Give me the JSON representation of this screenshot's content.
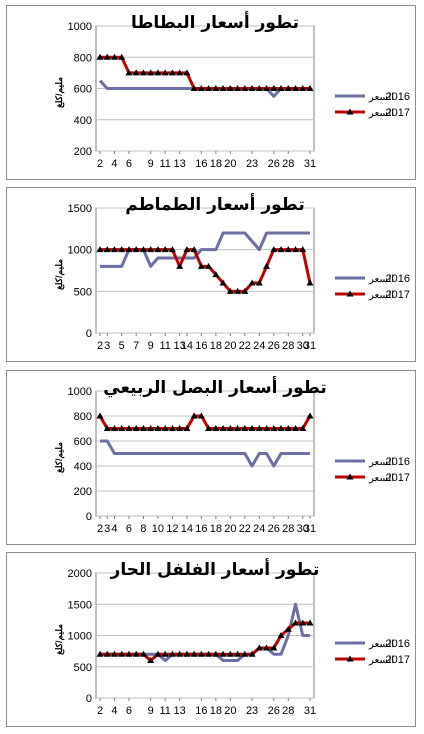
{
  "colors": {
    "series_2016": "#6b6fa3",
    "series_2017": "#c00000",
    "grid": "#bfbfbf",
    "axis": "#808080"
  },
  "chart_data": [
    {
      "type": "line",
      "title": "تطور أسعار البطاطا",
      "ylabel": "مليم/كلغ",
      "x": [
        2,
        3,
        4,
        5,
        6,
        7,
        8,
        9,
        10,
        11,
        12,
        13,
        14,
        15,
        16,
        17,
        18,
        19,
        20,
        21,
        22,
        23,
        24,
        25,
        26,
        27,
        28,
        29,
        30,
        31
      ],
      "xticks": [
        "2",
        "4",
        "6",
        "9",
        "11",
        "13",
        "16",
        "18",
        "20",
        "23",
        "26",
        "28",
        "31"
      ],
      "yticks": [
        "1000",
        "800",
        "600",
        "400",
        "200"
      ],
      "ylim": [
        200,
        1000
      ],
      "grid": true,
      "legend_position": "right",
      "series": [
        {
          "name": "2016",
          "label": "السعر",
          "values": [
            650,
            600,
            600,
            600,
            600,
            600,
            600,
            600,
            600,
            600,
            600,
            600,
            600,
            600,
            600,
            600,
            600,
            600,
            600,
            600,
            600,
            600,
            600,
            600,
            550,
            600,
            600,
            600,
            600,
            600
          ]
        },
        {
          "name": "2017",
          "label": "السعر",
          "values": [
            800,
            800,
            800,
            800,
            700,
            700,
            700,
            700,
            700,
            700,
            700,
            700,
            700,
            600,
            600,
            600,
            600,
            600,
            600,
            600,
            600,
            600,
            600,
            600,
            600,
            600,
            600,
            600,
            600,
            600
          ]
        }
      ]
    },
    {
      "type": "line",
      "title": "تطور أسعار الطماطم",
      "ylabel": "مليم/كلغ",
      "x": [
        2,
        3,
        4,
        5,
        6,
        7,
        8,
        9,
        10,
        11,
        12,
        13,
        14,
        15,
        16,
        17,
        18,
        19,
        20,
        21,
        22,
        23,
        24,
        25,
        26,
        27,
        28,
        29,
        30,
        31
      ],
      "xticks": [
        "2",
        "3",
        "5",
        "7",
        "9",
        "11",
        "13",
        "14",
        "16",
        "18",
        "20",
        "22",
        "24",
        "26",
        "28",
        "30",
        "31"
      ],
      "yticks": [
        "1500",
        "1000",
        "500",
        "0"
      ],
      "ylim": [
        0,
        1500
      ],
      "grid": true,
      "legend_position": "right",
      "series": [
        {
          "name": "2016",
          "label": "السعر",
          "values": [
            800,
            800,
            800,
            800,
            1000,
            1000,
            1000,
            800,
            900,
            900,
            900,
            900,
            900,
            900,
            1000,
            1000,
            1000,
            1200,
            1200,
            1200,
            1200,
            1100,
            1000,
            1200,
            1200,
            1200,
            1200,
            1200,
            1200,
            1200
          ]
        },
        {
          "name": "2017",
          "label": "السعر",
          "values": [
            1000,
            1000,
            1000,
            1000,
            1000,
            1000,
            1000,
            1000,
            1000,
            1000,
            1000,
            800,
            1000,
            1000,
            800,
            800,
            700,
            600,
            500,
            500,
            500,
            600,
            600,
            800,
            1000,
            1000,
            1000,
            1000,
            1000,
            600
          ]
        }
      ]
    },
    {
      "type": "line",
      "title": "تطور أسعار البصل الربيعي",
      "ylabel": "مليم/كلغ",
      "x": [
        2,
        3,
        4,
        5,
        6,
        7,
        8,
        9,
        10,
        11,
        12,
        13,
        14,
        15,
        16,
        17,
        18,
        19,
        20,
        21,
        22,
        23,
        24,
        25,
        26,
        27,
        28,
        29,
        30,
        31
      ],
      "xticks": [
        "2",
        "3",
        "4",
        "6",
        "8",
        "10",
        "12",
        "14",
        "16",
        "18",
        "20",
        "22",
        "24",
        "26",
        "28",
        "30",
        "31"
      ],
      "yticks": [
        "1000",
        "800",
        "600",
        "400",
        "200",
        "0"
      ],
      "ylim": [
        0,
        1000
      ],
      "grid": true,
      "legend_position": "right",
      "series": [
        {
          "name": "2016",
          "label": "السعر",
          "values": [
            600,
            600,
            500,
            500,
            500,
            500,
            500,
            500,
            500,
            500,
            500,
            500,
            500,
            500,
            500,
            500,
            500,
            500,
            500,
            500,
            500,
            400,
            500,
            500,
            400,
            500,
            500,
            500,
            500,
            500
          ]
        },
        {
          "name": "2017",
          "label": "السعر",
          "values": [
            800,
            700,
            700,
            700,
            700,
            700,
            700,
            700,
            700,
            700,
            700,
            700,
            700,
            800,
            800,
            700,
            700,
            700,
            700,
            700,
            700,
            700,
            700,
            700,
            700,
            700,
            700,
            700,
            700,
            800
          ]
        }
      ]
    },
    {
      "type": "line",
      "title": "تطور أسعار الفلفل الحار",
      "ylabel": "مليم/كلغ",
      "x": [
        2,
        3,
        4,
        5,
        6,
        7,
        8,
        9,
        10,
        11,
        12,
        13,
        14,
        15,
        16,
        17,
        18,
        19,
        20,
        21,
        22,
        23,
        24,
        25,
        26,
        27,
        28,
        29,
        30,
        31
      ],
      "xticks": [
        "2",
        "4",
        "6",
        "9",
        "11",
        "13",
        "16",
        "18",
        "20",
        "23",
        "26",
        "28",
        "31"
      ],
      "yticks": [
        "2000",
        "1500",
        "1000",
        "500",
        "0"
      ],
      "ylim": [
        0,
        2000
      ],
      "grid": true,
      "legend_position": "right",
      "series": [
        {
          "name": "2016",
          "label": "السعر",
          "values": [
            700,
            700,
            700,
            700,
            700,
            700,
            700,
            700,
            700,
            600,
            700,
            700,
            700,
            700,
            700,
            700,
            700,
            600,
            600,
            600,
            700,
            700,
            800,
            800,
            700,
            700,
            1000,
            1500,
            1000,
            1000
          ]
        },
        {
          "name": "2017",
          "label": "السعر",
          "values": [
            700,
            700,
            700,
            700,
            700,
            700,
            700,
            600,
            700,
            700,
            700,
            700,
            700,
            700,
            700,
            700,
            700,
            700,
            700,
            700,
            700,
            700,
            800,
            800,
            800,
            1000,
            1100,
            1200,
            1200,
            1200
          ]
        }
      ]
    }
  ]
}
